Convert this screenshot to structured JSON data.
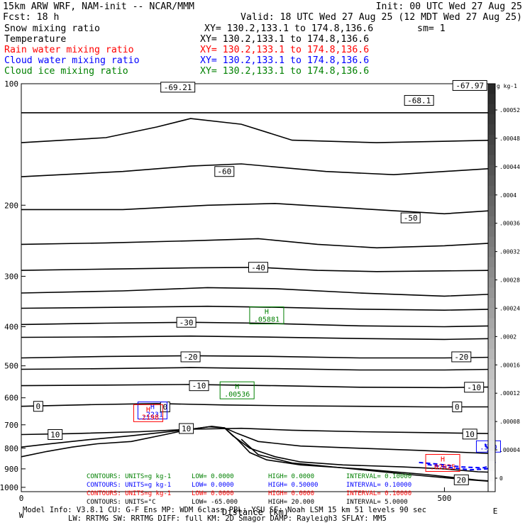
{
  "header": {
    "model": "15km ARW WRF, NAM-init -- NCAR/MMM",
    "init": "Init: 00 UTC Wed 27 Aug 25",
    "fcst": "Fcst:   18 h",
    "valid": "Valid: 18 UTC Wed 27 Aug 25 (12 MDT Wed 27 Aug 25)",
    "fields": [
      {
        "label": "Snow mixing ratio",
        "xy": "XY= 130.2,133.1 to 174.8,136.6",
        "extra": "sm= 1",
        "color": "#000000"
      },
      {
        "label": "Temperature",
        "xy": "XY= 130.2,133.1 to 174.8,136.6",
        "extra": "",
        "color": "#000000"
      },
      {
        "label": "Rain water mixing ratio",
        "xy": "XY= 130.2,133.1 to 174.8,136.6",
        "extra": "",
        "color": "#ff0000"
      },
      {
        "label": "Cloud water mixing ratio",
        "xy": "XY= 130.2,133.1 to 174.8,136.6",
        "extra": "",
        "color": "#0000ff"
      },
      {
        "label": "Cloud ice mixing ratio",
        "xy": "XY= 130.2,133.1 to 174.8,136.6",
        "extra": "",
        "color": "#008000"
      }
    ]
  },
  "chart_data": {
    "type": "contour",
    "xlabel": "Distance (km)",
    "x_ticks": [
      {
        "value": 0,
        "label": "0"
      },
      {
        "value": 500,
        "label": "500"
      }
    ],
    "xlim": [
      0,
      560
    ],
    "x_end_labels": {
      "left": "W",
      "right": "E"
    },
    "y_axis": "pressure",
    "y_tick_labels": [
      {
        "p": 100,
        "label": "100"
      },
      {
        "p": 200,
        "label": "200"
      },
      {
        "p": 300,
        "label": "300"
      },
      {
        "p": 400,
        "label": "400"
      },
      {
        "p": 500,
        "label": "500"
      },
      {
        "p": 600,
        "label": "600"
      },
      {
        "p": 700,
        "label": "700"
      },
      {
        "p": 800,
        "label": "800"
      },
      {
        "p": 900,
        "label": "900"
      },
      {
        "p": 1000,
        "label": "1000"
      }
    ],
    "ylim": [
      100,
      1025
    ],
    "temperature_labels": [
      {
        "x": 185,
        "p": 102,
        "label": "-69.21"
      },
      {
        "x": 470,
        "p": 110,
        "label": "-68.1"
      },
      {
        "x": 530,
        "p": 101,
        "label": "-67.97"
      },
      {
        "x": 240,
        "p": 165,
        "label": "-60"
      },
      {
        "x": 460,
        "p": 215,
        "label": "-50"
      },
      {
        "x": 280,
        "p": 285,
        "label": "-40"
      },
      {
        "x": 195,
        "p": 390,
        "label": "-30"
      },
      {
        "x": 200,
        "p": 475,
        "label": "-20"
      },
      {
        "x": 520,
        "p": 475,
        "label": "-20"
      },
      {
        "x": 210,
        "p": 560,
        "label": "-10"
      },
      {
        "x": 535,
        "p": 565,
        "label": "-10"
      },
      {
        "x": 20,
        "p": 630,
        "label": "0"
      },
      {
        "x": 170,
        "p": 632,
        "label": "0"
      },
      {
        "x": 515,
        "p": 632,
        "label": "0"
      },
      {
        "x": 40,
        "p": 740,
        "label": "10"
      },
      {
        "x": 195,
        "p": 715,
        "label": "10"
      },
      {
        "x": 530,
        "p": 738,
        "label": "10"
      },
      {
        "x": 520,
        "p": 958,
        "label": "20"
      }
    ],
    "temperature_isotherms": [
      {
        "x": [
          0,
          560
        ],
        "p": [
          118,
          118
        ]
      },
      {
        "x": [
          0,
          100,
          160,
          200,
          260,
          320,
          420,
          560
        ],
        "p": [
          140,
          136,
          128,
          122,
          126,
          138,
          140,
          138
        ]
      },
      {
        "x": [
          0,
          120,
          200,
          260,
          360,
          440,
          500,
          560
        ],
        "p": [
          170,
          165,
          160,
          158,
          165,
          168,
          165,
          162
        ]
      },
      {
        "x": [
          0,
          120,
          220,
          300,
          400,
          500,
          560
        ],
        "p": [
          205,
          205,
          200,
          198,
          204,
          210,
          206
        ]
      },
      {
        "x": [
          0,
          100,
          200,
          280,
          350,
          420,
          500,
          560
        ],
        "p": [
          250,
          248,
          245,
          242,
          250,
          255,
          252,
          248
        ]
      },
      {
        "x": [
          0,
          100,
          200,
          280,
          350,
          420,
          560
        ],
        "p": [
          290,
          288,
          286,
          285,
          290,
          292,
          290
        ]
      },
      {
        "x": [
          0,
          120,
          220,
          300,
          400,
          500,
          560
        ],
        "p": [
          330,
          326,
          320,
          322,
          330,
          336,
          332
        ]
      },
      {
        "x": [
          0,
          120,
          220,
          300,
          400,
          500,
          560
        ],
        "p": [
          360,
          358,
          356,
          358,
          362,
          364,
          362
        ]
      },
      {
        "x": [
          0,
          100,
          200,
          280,
          400,
          500,
          560
        ],
        "p": [
          395,
          392,
          390,
          392,
          398,
          400,
          398
        ]
      },
      {
        "x": [
          0,
          100,
          200,
          280,
          400,
          500,
          560
        ],
        "p": [
          425,
          424,
          422,
          424,
          428,
          430,
          428
        ]
      },
      {
        "x": [
          0,
          100,
          200,
          300,
          400,
          500,
          560
        ],
        "p": [
          478,
          474,
          472,
          474,
          478,
          478,
          476
        ]
      },
      {
        "x": [
          0,
          100,
          200,
          300,
          400,
          500,
          560
        ],
        "p": [
          510,
          508,
          505,
          508,
          512,
          512,
          510
        ]
      },
      {
        "x": [
          0,
          100,
          200,
          300,
          400,
          500,
          560
        ],
        "p": [
          560,
          558,
          556,
          560,
          565,
          566,
          564
        ]
      },
      {
        "x": [
          0,
          80,
          160,
          240,
          320,
          400,
          480,
          560
        ],
        "p": [
          630,
          624,
          620,
          625,
          628,
          630,
          632,
          632
        ]
      },
      {
        "x": [
          0,
          60,
          140,
          200,
          260,
          320,
          400,
          480,
          560
        ],
        "p": [
          740,
          736,
          728,
          718,
          714,
          722,
          728,
          732,
          736
        ]
      },
      {
        "x": [
          0,
          30,
          80,
          130,
          170,
          200,
          225,
          240,
          255,
          280,
          330,
          400,
          470,
          540,
          560
        ],
        "p": [
          795,
          782,
          762,
          745,
          730,
          718,
          706,
          712,
          735,
          770,
          790,
          800,
          810,
          822,
          826
        ]
      },
      {
        "x": [
          0,
          30,
          60,
          90,
          130,
          170,
          200,
          222,
          240,
          250,
          270,
          300,
          330,
          380,
          450,
          500,
          540,
          560
        ],
        "p": [
          840,
          815,
          795,
          780,
          770,
          740,
          718,
          708,
          712,
          745,
          800,
          840,
          865,
          880,
          890,
          900,
          915,
          918
        ]
      },
      {
        "x": [
          240,
          255,
          270,
          290,
          330,
          400,
          480,
          540,
          560
        ],
        "p": [
          712,
          760,
          820,
          855,
          880,
          900,
          930,
          960,
          966
        ]
      },
      {
        "x": [
          260,
          280,
          320,
          380,
          460,
          520,
          560
        ],
        "p": [
          760,
          830,
          870,
          895,
          930,
          955,
          968
        ]
      }
    ],
    "cloud_ice_maxima": [
      {
        "x": 290,
        "p": 375,
        "label": ".05881",
        "marker": "H"
      },
      {
        "x": 255,
        "p": 575,
        "label": ".00536",
        "marker": "H"
      }
    ],
    "cloud_water_maxima": [
      {
        "x": 155,
        "p": 645,
        "label": ".2231",
        "marker": "H"
      },
      {
        "x": 552,
        "p": 792,
        "label": ".510",
        "marker": ""
      }
    ],
    "rain_water_maxima": [
      {
        "x": 150,
        "p": 655,
        "label": ".2198",
        "marker": "H"
      },
      {
        "x": 498,
        "p": 870,
        "label": ".02025",
        "marker": "H"
      }
    ],
    "cloud_water_contours": [
      {
        "x": [
          470,
          490,
          520,
          545,
          560
        ],
        "p": [
          868,
          875,
          890,
          895,
          880
        ]
      },
      {
        "x": [
          480,
          500,
          530,
          550,
          560
        ],
        "p": [
          878,
          890,
          905,
          900,
          885
        ]
      },
      {
        "x": [
          548,
          552,
          558,
          560
        ],
        "p": [
          780,
          820,
          845,
          870
        ]
      }
    ],
    "colorbar": {
      "unit_label": "g kg-1",
      "tick_labels": [
        ".00052",
        ".00048",
        ".00044",
        ".0004",
        ".00036",
        ".00032",
        ".00028",
        ".00024",
        ".0002",
        ".00016",
        ".00012",
        ".00008",
        ".00004",
        "0"
      ]
    },
    "contour_info": [
      {
        "units": "CONTOURS:  UNITS=g kg-1",
        "low": "LOW=  0.0000",
        "high": "HIGH=  0.0000",
        "interval": "INTERVAL=  0.10000",
        "color": "#008000"
      },
      {
        "units": "CONTOURS:  UNITS=g kg-1",
        "low": "LOW=  0.0000",
        "high": "HIGH=  0.50000",
        "interval": "INTERVAL=  0.10000",
        "color": "#0000ff"
      },
      {
        "units": "CONTOURS:  UNITS=g kg-1",
        "low": "LOW=  0.0000",
        "high": "HIGH=  0.0000",
        "interval": "INTERVAL=  0.10000",
        "color": "#ff0000"
      },
      {
        "units": "CONTOURS:  UNITS=°C",
        "low": "LOW=  -65.000",
        "high": "HIGH=  20.000",
        "interval": "INTERVAL=  5.0000",
        "color": "#000000"
      }
    ]
  },
  "footer": {
    "line1": "Model Info: V3.8.1    CU: G-F Ens  MP: WDM 6class  PBL: YSU     SF: Noah LSM    15 km    51 levels    90 sec",
    "line2": "LW: RRTMG    SW: RRTMG   DIFF: full    KM: 2D Smagor DAMP: Rayleigh3   SFLAY: MM5"
  }
}
